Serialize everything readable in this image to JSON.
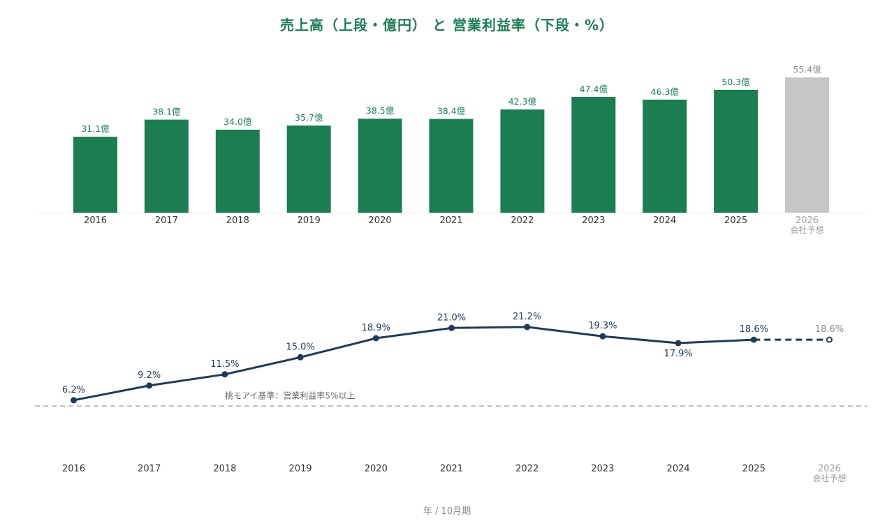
{
  "title": "売上高（上段・億円） と 営業利益率（下段・%）",
  "footer": "年 / 10月期",
  "colors": {
    "bar": "#1b7e53",
    "bar_forecast": "#c6c6c6",
    "line": "#1f3a5a",
    "label_gray": "#8c8c8c",
    "benchmark": "#a6a6a6"
  },
  "chart_data": [
    {
      "type": "bar",
      "series": [
        {
          "values": [
            31.1,
            38.1,
            34.0,
            35.7,
            38.5,
            38.4,
            42.3,
            47.4,
            46.3,
            50.3,
            55.4
          ]
        }
      ],
      "categories": [
        "2016",
        "2017",
        "2018",
        "2019",
        "2020",
        "2021",
        "2022",
        "2023",
        "2024",
        "2025",
        "2026"
      ],
      "category_sublabels": [
        "",
        "",
        "",
        "",
        "",
        "",
        "",
        "",
        "",
        "",
        "会社予想"
      ],
      "value_labels": [
        "31.1億",
        "38.1億",
        "34.0億",
        "35.7億",
        "38.5億",
        "38.4億",
        "42.3億",
        "47.4億",
        "46.3億",
        "50.3億",
        "55.4億"
      ],
      "forecast_index": 10,
      "ylim": [
        0,
        60
      ]
    },
    {
      "type": "line",
      "series": [
        {
          "values": [
            6.2,
            9.2,
            11.5,
            15.0,
            18.9,
            21.0,
            21.2,
            19.3,
            17.9,
            18.6,
            18.6
          ]
        }
      ],
      "categories": [
        "2016",
        "2017",
        "2018",
        "2019",
        "2020",
        "2021",
        "2022",
        "2023",
        "2024",
        "2025",
        "2026"
      ],
      "category_sublabels": [
        "",
        "",
        "",
        "",
        "",
        "",
        "",
        "",
        "",
        "",
        "会社予想"
      ],
      "value_labels": [
        "6.2%",
        "9.2%",
        "11.5%",
        "15.0%",
        "18.9%",
        "21.0%",
        "21.2%",
        "19.3%",
        "17.9%",
        "18.6%",
        "18.6%"
      ],
      "label_below": [
        false,
        false,
        false,
        false,
        false,
        false,
        false,
        false,
        true,
        false,
        false
      ],
      "forecast_index": 10,
      "benchmark": {
        "value": 5,
        "label": "桃モアイ基準：営業利益率5%以上"
      }
    }
  ]
}
